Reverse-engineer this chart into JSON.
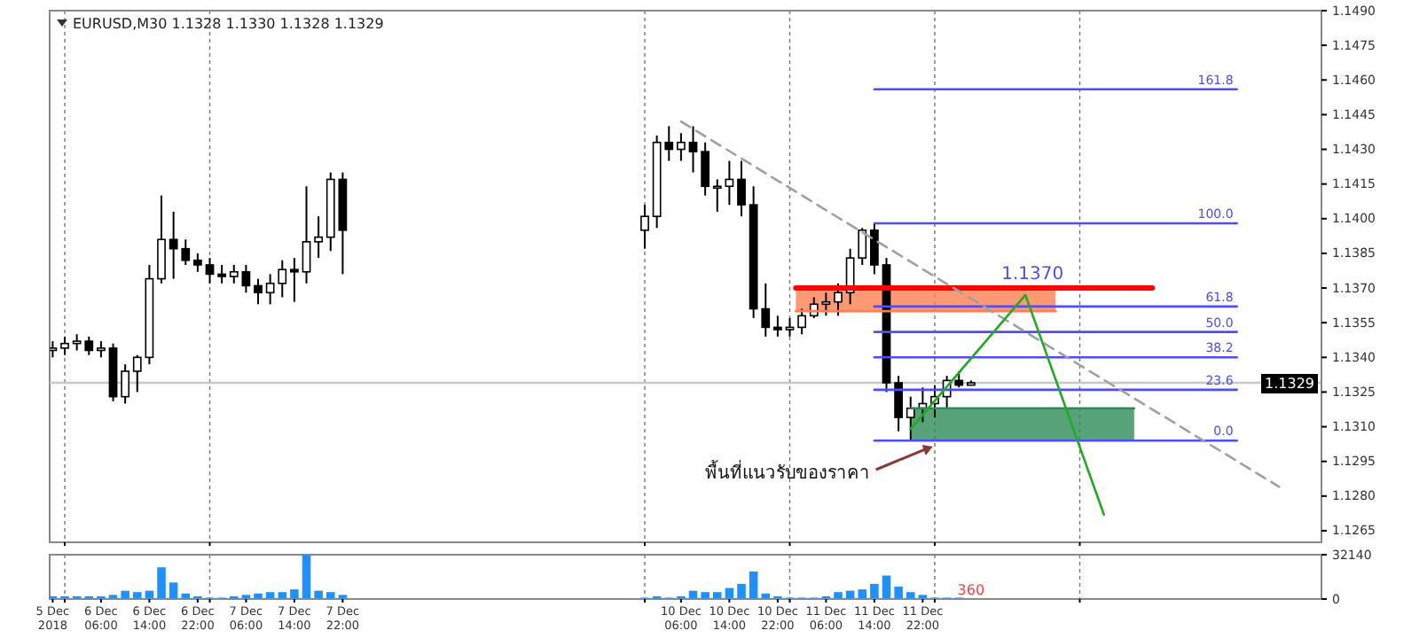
{
  "chart_data": [
    {
      "type": "candlestick",
      "title": "EURUSD,M30 1.1328 1.1330 1.1328 1.1329",
      "color": "#000000",
      "x": [
        "2018-12-05T22:00",
        "2018-12-06T00:00",
        "2018-12-06T02:00",
        "2018-12-06T04:00",
        "2018-12-06T06:00",
        "2018-12-06T08:00",
        "2018-12-06T10:00",
        "2018-12-06T12:00",
        "2018-12-06T14:00",
        "2018-12-06T16:00",
        "2018-12-06T18:00",
        "2018-12-06T20:00",
        "2018-12-06T22:00",
        "2018-12-07T00:00",
        "2018-12-07T02:00",
        "2018-12-07T04:00",
        "2018-12-07T06:00",
        "2018-12-07T08:00",
        "2018-12-07T10:00",
        "2018-12-07T12:00",
        "2018-12-07T14:00",
        "2018-12-07T16:00",
        "2018-12-07T18:00",
        "2018-12-07T20:00",
        "2018-12-07T22:00",
        "2018-12-10T00:00",
        "2018-12-10T02:00",
        "2018-12-10T04:00",
        "2018-12-10T06:00",
        "2018-12-10T08:00",
        "2018-12-10T10:00",
        "2018-12-10T12:00",
        "2018-12-10T14:00",
        "2018-12-10T16:00",
        "2018-12-10T18:00",
        "2018-12-10T20:00",
        "2018-12-10T22:00",
        "2018-12-11T00:00",
        "2018-12-11T02:00",
        "2018-12-11T04:00",
        "2018-12-11T06:00",
        "2018-12-11T08:00",
        "2018-12-11T10:00",
        "2018-12-11T12:00",
        "2018-12-11T14:00",
        "2018-12-11T16:00",
        "2018-12-11T18:00",
        "2018-12-11T20:00",
        "2018-12-11T22:00",
        "2018-12-12T00:00",
        "2018-12-12T02:00",
        "2018-12-12T04:00",
        "2018-12-12T06:00"
      ],
      "ohlc": [
        [
          1.1343,
          1.1347,
          1.134,
          1.1344
        ],
        [
          1.1344,
          1.1349,
          1.1341,
          1.1346
        ],
        [
          1.1346,
          1.135,
          1.1343,
          1.1347
        ],
        [
          1.1347,
          1.1349,
          1.1341,
          1.1343
        ],
        [
          1.1343,
          1.1347,
          1.134,
          1.1344
        ],
        [
          1.1344,
          1.1346,
          1.1321,
          1.1323
        ],
        [
          1.1323,
          1.1337,
          1.132,
          1.1334
        ],
        [
          1.1334,
          1.1341,
          1.1325,
          1.134
        ],
        [
          1.134,
          1.138,
          1.1337,
          1.1374
        ],
        [
          1.1374,
          1.141,
          1.1372,
          1.1391
        ],
        [
          1.1391,
          1.1403,
          1.1374,
          1.1387
        ],
        [
          1.1387,
          1.1391,
          1.138,
          1.1382
        ],
        [
          1.1382,
          1.1385,
          1.1377,
          1.138
        ],
        [
          1.138,
          1.1383,
          1.1372,
          1.1376
        ],
        [
          1.1376,
          1.138,
          1.1372,
          1.1375
        ],
        [
          1.1375,
          1.138,
          1.1372,
          1.1377
        ],
        [
          1.1377,
          1.138,
          1.1368,
          1.1371
        ],
        [
          1.1371,
          1.1374,
          1.1363,
          1.1368
        ],
        [
          1.1368,
          1.1376,
          1.1363,
          1.1372
        ],
        [
          1.1372,
          1.1382,
          1.1366,
          1.1378
        ],
        [
          1.1378,
          1.1383,
          1.1364,
          1.1377
        ],
        [
          1.1377,
          1.1414,
          1.1372,
          1.139
        ],
        [
          1.139,
          1.1401,
          1.1383,
          1.1392
        ],
        [
          1.1392,
          1.142,
          1.1386,
          1.1417
        ],
        [
          1.1417,
          1.142,
          1.1376,
          1.1395
        ],
        [
          1.1395,
          1.1406,
          1.1387,
          1.1401
        ],
        [
          1.1401,
          1.1436,
          1.1396,
          1.1433
        ],
        [
          1.1433,
          1.144,
          1.1425,
          1.143
        ],
        [
          1.143,
          1.1437,
          1.1425,
          1.1433
        ],
        [
          1.1433,
          1.144,
          1.142,
          1.1429
        ],
        [
          1.1429,
          1.1433,
          1.141,
          1.1414
        ],
        [
          1.1414,
          1.1417,
          1.1403,
          1.1414
        ],
        [
          1.1414,
          1.1425,
          1.1406,
          1.1417
        ],
        [
          1.1417,
          1.1425,
          1.1401,
          1.1406
        ],
        [
          1.1406,
          1.1414,
          1.1357,
          1.1361
        ],
        [
          1.1361,
          1.1372,
          1.1349,
          1.1353
        ],
        [
          1.1353,
          1.1358,
          1.1349,
          1.1352
        ],
        [
          1.1352,
          1.1357,
          1.1349,
          1.1353
        ],
        [
          1.1353,
          1.1361,
          1.135,
          1.1358
        ],
        [
          1.1358,
          1.1366,
          1.1357,
          1.1363
        ],
        [
          1.1363,
          1.1368,
          1.1358,
          1.1364
        ],
        [
          1.1364,
          1.1372,
          1.1358,
          1.1368
        ],
        [
          1.1368,
          1.1387,
          1.1363,
          1.1383
        ],
        [
          1.1383,
          1.1396,
          1.138,
          1.1395
        ],
        [
          1.1395,
          1.1398,
          1.1376,
          1.138
        ],
        [
          1.138,
          1.1383,
          1.1325,
          1.1329
        ],
        [
          1.1329,
          1.1332,
          1.1308,
          1.1314
        ],
        [
          1.1314,
          1.1323,
          1.1304,
          1.1318
        ],
        [
          1.1318,
          1.1327,
          1.1312,
          1.132
        ],
        [
          1.132,
          1.1328,
          1.1314,
          1.1323
        ],
        [
          1.1323,
          1.1332,
          1.1318,
          1.133
        ],
        [
          1.133,
          1.1334,
          1.1327,
          1.1328
        ],
        [
          1.1328,
          1.133,
          1.1328,
          1.1329
        ]
      ],
      "xlim": [
        "2018-12-05T21:30",
        "2018-12-14T16:00"
      ],
      "xticks": [
        {
          "value": "2018-12-06T00:00",
          "label": null
        },
        {
          "value": "2018-12-07T00:00",
          "label": null
        },
        {
          "value": "2018-12-10T00:00",
          "label": null
        },
        {
          "value": "2018-12-11T00:00",
          "label": null
        },
        {
          "value": "2018-12-12T00:00",
          "label": null
        },
        {
          "value": "2018-12-13T00:00",
          "label": null
        }
      ],
      "ylim": [
        1.126,
        1.149
      ],
      "yticks": [
        {
          "value": 1.149,
          "label": "1.1490"
        },
        1.1475,
        {
          "value": 1.146,
          "label": "1.1460"
        },
        1.1445,
        {
          "value": 1.143,
          "label": "1.1430"
        },
        1.1415,
        {
          "value": 1.14,
          "label": "1.1400"
        },
        1.1385,
        {
          "value": 1.137,
          "label": "1.1370"
        },
        1.1355,
        {
          "value": 1.134,
          "label": "1.1340"
        },
        1.1325,
        {
          "value": 1.131,
          "label": "1.1310"
        },
        1.1295,
        {
          "value": 1.128,
          "label": "1.1280"
        },
        1.1265
      ],
      "grid": "x",
      "tick_labels": "y",
      "ref_lines": [
        {
          "axis": "y",
          "value": 1.1329,
          "label": "1.1329",
          "color": "#c8c8c8"
        }
      ],
      "series": [
        {
          "name": "161.8",
          "type": "line",
          "color": "#4d4dff",
          "x": [
            "2018-12-11T14:00",
            "2018-12-14T02:00"
          ],
          "values": [
            1.1456,
            1.1456
          ]
        },
        {
          "name": "100.0",
          "type": "line",
          "color": "#4d4dff",
          "x": [
            "2018-12-11T14:00",
            "2018-12-14T02:00"
          ],
          "values": [
            1.1398,
            1.1398
          ]
        },
        {
          "name": "61.8",
          "type": "line",
          "color": "#4d4dff",
          "x": [
            "2018-12-11T14:00",
            "2018-12-14T02:00"
          ],
          "values": [
            1.1362,
            1.1362
          ]
        },
        {
          "name": "50.0",
          "type": "line",
          "color": "#4d4dff",
          "x": [
            "2018-12-11T14:00",
            "2018-12-14T02:00"
          ],
          "values": [
            1.1351,
            1.1351
          ]
        },
        {
          "name": "38.2",
          "type": "line",
          "color": "#4d4dff",
          "x": [
            "2018-12-11T14:00",
            "2018-12-14T02:00"
          ],
          "values": [
            1.134,
            1.134
          ]
        },
        {
          "name": "23.6",
          "type": "line",
          "color": "#4d4dff",
          "x": [
            "2018-12-11T14:00",
            "2018-12-14T02:00"
          ],
          "values": [
            1.1326,
            1.1326
          ]
        },
        {
          "type": "line",
          "color": "#2e8b57",
          "x": [
            "2018-12-11T20:00",
            "2018-12-13T09:00"
          ],
          "values": [
            1.1318,
            1.1318
          ],
          "lower": [
            1.1304,
            1.1304
          ],
          "upper": [
            1.1318,
            1.1318
          ]
        },
        {
          "type": "line",
          "color": "#ff7f50",
          "x": [
            "2018-12-11T01:00",
            "2018-12-12T20:00"
          ],
          "values": [
            1.136,
            1.136
          ],
          "lower": [
            1.136,
            1.136
          ],
          "upper": [
            1.137,
            1.137
          ]
        },
        {
          "name": "0.0",
          "type": "line",
          "color": "#4d4dff",
          "x": [
            "2018-12-11T14:00",
            "2018-12-14T02:00"
          ],
          "values": [
            1.1304,
            1.1304
          ]
        },
        {
          "name": "1.1370",
          "type": "line",
          "color": "#ff0000",
          "x": [
            "2018-12-11T01:00",
            "2018-12-13T12:00"
          ],
          "values": [
            1.137,
            1.137
          ]
        },
        {
          "type": "line",
          "color": "#a0a0a0",
          "line_style": "dashed",
          "x": [
            "2018-12-10T06:00",
            "2018-12-14T09:00"
          ],
          "values": [
            1.1442,
            1.1284
          ]
        },
        {
          "type": "line",
          "color": "#22aa22",
          "x": [
            "2018-12-11T20:00",
            "2018-12-12T15:00",
            "2018-12-13T04:00"
          ],
          "values": [
            1.1309,
            1.1367,
            1.1272
          ]
        }
      ],
      "annotations": [
        "พื้นที่แนวรับของราคา"
      ]
    },
    {
      "type": "bar",
      "color": "#1e90ff",
      "x": [
        "2018-12-05T22:00",
        "2018-12-06T00:00",
        "2018-12-06T02:00",
        "2018-12-06T04:00",
        "2018-12-06T06:00",
        "2018-12-06T08:00",
        "2018-12-06T10:00",
        "2018-12-06T12:00",
        "2018-12-06T14:00",
        "2018-12-06T16:00",
        "2018-12-06T18:00",
        "2018-12-06T20:00",
        "2018-12-06T22:00",
        "2018-12-07T00:00",
        "2018-12-07T02:00",
        "2018-12-07T04:00",
        "2018-12-07T06:00",
        "2018-12-07T08:00",
        "2018-12-07T10:00",
        "2018-12-07T12:00",
        "2018-12-07T14:00",
        "2018-12-07T16:00",
        "2018-12-07T18:00",
        "2018-12-07T20:00",
        "2018-12-07T22:00",
        "2018-12-10T00:00",
        "2018-12-10T02:00",
        "2018-12-10T04:00",
        "2018-12-10T06:00",
        "2018-12-10T08:00",
        "2018-12-10T10:00",
        "2018-12-10T12:00",
        "2018-12-10T14:00",
        "2018-12-10T16:00",
        "2018-12-10T18:00",
        "2018-12-10T20:00",
        "2018-12-10T22:00",
        "2018-12-11T00:00",
        "2018-12-11T02:00",
        "2018-12-11T04:00",
        "2018-12-11T06:00",
        "2018-12-11T08:00",
        "2018-12-11T10:00",
        "2018-12-11T12:00",
        "2018-12-11T14:00",
        "2018-12-11T16:00",
        "2018-12-11T18:00",
        "2018-12-11T20:00",
        "2018-12-11T22:00",
        "2018-12-12T00:00",
        "2018-12-12T02:00",
        "2018-12-12T04:00",
        "2018-12-12T06:00"
      ],
      "values": [
        2000,
        2000,
        2000,
        2000,
        2000,
        3000,
        6000,
        5000,
        6000,
        23000,
        12000,
        4000,
        2000,
        1000,
        1000,
        2000,
        3000,
        4000,
        5000,
        5000,
        7000,
        32140,
        6000,
        5000,
        3000,
        1000,
        2000,
        1000,
        2000,
        6000,
        5000,
        5000,
        8000,
        11000,
        20000,
        4000,
        2000,
        1000,
        1000,
        1000,
        2000,
        5000,
        6000,
        7000,
        11000,
        17000,
        9000,
        5000,
        3000,
        1000,
        1000,
        1000,
        360
      ],
      "xlim": [
        "2018-12-05T21:30",
        "2018-12-14T16:00"
      ],
      "xticks": [
        {
          "value": "2018-12-05T22:00",
          "label": "5 Dec 2018"
        },
        {
          "value": "2018-12-06T06:00",
          "label": "6 Dec 06:00"
        },
        {
          "value": "2018-12-06T14:00",
          "label": "6 Dec 14:00"
        },
        {
          "value": "2018-12-06T22:00",
          "label": "6 Dec 22:00"
        },
        {
          "value": "2018-12-07T06:00",
          "label": "7 Dec 06:00"
        },
        {
          "value": "2018-12-07T14:00",
          "label": "7 Dec 14:00"
        },
        {
          "value": "2018-12-07T22:00",
          "label": "7 Dec 22:00"
        },
        {
          "value": "2018-12-10T06:00",
          "label": "10 Dec 06:00"
        },
        {
          "value": "2018-12-10T14:00",
          "label": "10 Dec 14:00"
        },
        {
          "value": "2018-12-10T22:00",
          "label": "10 Dec 22:00"
        },
        {
          "value": "2018-12-11T06:00",
          "label": "11 Dec 06:00"
        },
        {
          "value": "2018-12-11T14:00",
          "label": "11 Dec 14:00"
        },
        {
          "value": "2018-12-11T22:00",
          "label": "11 Dec 22:00"
        },
        {
          "value": "2018-12-06T00:00",
          "label": null
        },
        {
          "value": "2018-12-07T00:00",
          "label": null
        },
        {
          "value": "2018-12-10T00:00",
          "label": null
        },
        {
          "value": "2018-12-11T00:00",
          "label": null
        },
        {
          "value": "2018-12-12T00:00",
          "label": null
        },
        {
          "value": "2018-12-13T00:00",
          "label": null
        }
      ],
      "ylim": [
        0,
        32140
      ],
      "yticks": [
        0,
        32140
      ],
      "grid": "x",
      "annotations": [
        {
          "text": "360",
          "x": "2018-12-12T06:00",
          "y": 360
        }
      ]
    }
  ]
}
